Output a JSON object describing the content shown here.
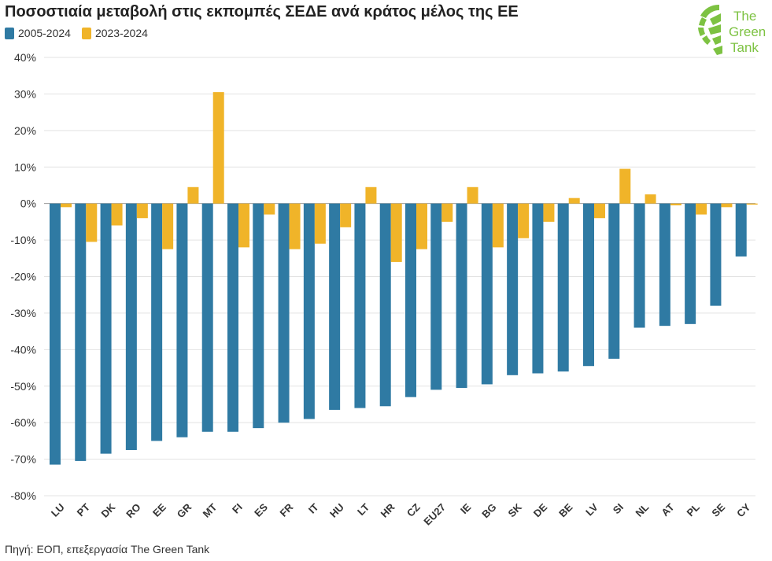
{
  "title": "Ποσοστιαία μεταβολή στις εκπομπές ΣΕΔΕ ανά κράτος μέλος της ΕΕ",
  "source": "Πηγή: ΕΟΠ, επεξεργασία The Green Tank",
  "logo": {
    "line1": "The",
    "line2": "Green",
    "line3": "Tank",
    "icon": "green-tank-logo-icon",
    "color": "#7dc242"
  },
  "chart_data": {
    "type": "bar",
    "categories": [
      "LU",
      "PT",
      "DK",
      "RO",
      "EE",
      "GR",
      "MT",
      "FI",
      "ES",
      "FR",
      "IT",
      "HU",
      "LT",
      "HR",
      "CZ",
      "EU27",
      "IE",
      "BG",
      "SK",
      "DE",
      "BE",
      "LV",
      "SI",
      "NL",
      "AT",
      "PL",
      "SE",
      "CY"
    ],
    "series": [
      {
        "name": "2005-2024",
        "color": "#2f7aa3",
        "values": [
          -71.5,
          -70.5,
          -68.5,
          -67.5,
          -65,
          -64,
          -62.5,
          -62.5,
          -61.5,
          -60,
          -59,
          -56.5,
          -56,
          -55.5,
          -53,
          -51,
          -50.5,
          -49.5,
          -47,
          -46.5,
          -46,
          -44.5,
          -42.5,
          -34,
          -33.5,
          -33,
          -28,
          -14.5
        ]
      },
      {
        "name": "2023-2024",
        "color": "#f0b429",
        "values": [
          -1,
          -10.5,
          -6,
          -4,
          -12.5,
          4.5,
          30.5,
          -12,
          -3,
          -12.5,
          -11,
          -6.5,
          4.5,
          -16,
          -12.5,
          -5,
          4.5,
          -12,
          -9.5,
          -5,
          1.5,
          -4,
          9.5,
          2.5,
          -0.5,
          -3,
          -1,
          -0.3
        ]
      }
    ],
    "ylim": [
      -80,
      40
    ],
    "yticks": [
      40,
      30,
      20,
      10,
      0,
      -10,
      -20,
      -30,
      -40,
      -50,
      -60,
      -70,
      -80
    ],
    "ytick_labels": [
      "40%",
      "30%",
      "20%",
      "10%",
      "0%",
      "-10%",
      "-20%",
      "-30%",
      "-40%",
      "-50%",
      "-60%",
      "-70%",
      "-80%"
    ],
    "xlabel": "",
    "ylabel": "",
    "grid": true,
    "legend": "top-left"
  }
}
